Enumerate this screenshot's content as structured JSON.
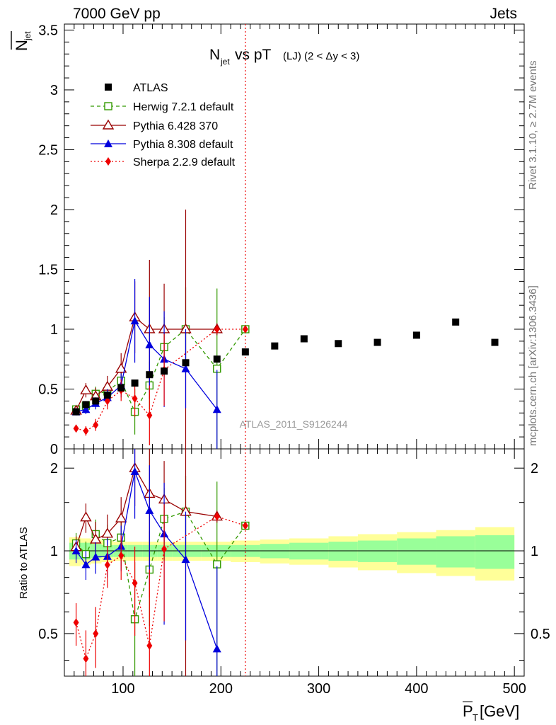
{
  "header": {
    "left": "7000 GeV pp",
    "right": "Jets"
  },
  "side": {
    "rivet": "Rivet 3.1.10, ≥ 2.7M events",
    "mcplots": "mcplots.cern.ch [arXiv:1306.3436]"
  },
  "chart_data": {
    "type": "scatter",
    "title": "N_jet vs pT (LJ) (2 < Δy < 3)",
    "analysis_tag": "ATLAS_2011_S9126244",
    "xlabel": "P_T [GeV]",
    "ylabel": "N_jet",
    "ratio_ylabel": "Ratio to ATLAS",
    "xlim": [
      40,
      510
    ],
    "ylim": [
      0,
      3.55
    ],
    "ratio_ylim": [
      0.35,
      2.35
    ],
    "x_ticks": [
      "100",
      "200",
      "300",
      "400",
      "500"
    ],
    "y_ticks": [
      "0",
      "0.5",
      "1",
      "1.5",
      "2",
      "2.5",
      "3",
      "3.5"
    ],
    "ratio_ticks": [
      "0.5",
      "1",
      "2"
    ],
    "vertical_line_x": 225,
    "legend": [
      "ATLAS",
      "Herwig 7.2.1 default",
      "Pythia 6.428 370",
      "Pythia 8.308 default",
      "Sherpa 2.2.9 default"
    ],
    "data": {
      "name": "ATLAS",
      "x": [
        52,
        62,
        72,
        84,
        98,
        112,
        127,
        142,
        164,
        196,
        225,
        255,
        285,
        320,
        360,
        400,
        440,
        480
      ],
      "y": [
        0.31,
        0.37,
        0.4,
        0.45,
        0.51,
        0.55,
        0.62,
        0.65,
        0.72,
        0.75,
        0.81,
        0.86,
        0.92,
        0.88,
        0.89,
        0.95,
        1.06,
        0.89
      ],
      "band_edges": [
        45,
        57,
        67,
        78,
        90,
        105,
        120,
        135,
        150,
        180,
        210,
        240,
        270,
        310,
        340,
        380,
        420,
        460,
        500
      ],
      "band_inner": [
        0.07,
        0.07,
        0.06,
        0.05,
        0.05,
        0.05,
        0.05,
        0.05,
        0.05,
        0.05,
        0.05,
        0.06,
        0.07,
        0.08,
        0.09,
        0.11,
        0.13,
        0.14,
        0.17
      ],
      "band_outer": [
        0.12,
        0.11,
        0.1,
        0.09,
        0.08,
        0.08,
        0.08,
        0.08,
        0.08,
        0.08,
        0.09,
        0.1,
        0.11,
        0.13,
        0.15,
        0.17,
        0.19,
        0.22,
        0.24
      ]
    },
    "series": [
      {
        "name": "Herwig 7.2.1 default",
        "color": "#339900",
        "dash": "5,4",
        "marker": "open-square",
        "x": [
          52,
          62,
          72,
          84,
          98,
          112,
          127,
          142,
          164,
          196,
          225
        ],
        "y": [
          0.33,
          0.36,
          0.46,
          0.48,
          0.57,
          0.31,
          0.53,
          0.85,
          1.0,
          0.67,
          1.0
        ],
        "err": [
          0.03,
          0.04,
          0.06,
          0.08,
          0.12,
          0.19,
          0.2,
          0.25,
          0.35,
          0.67,
          0.02
        ]
      },
      {
        "name": "Pythia 6.428 370",
        "color": "#990000",
        "dash": "",
        "marker": "open-triangle",
        "x": [
          52,
          62,
          72,
          84,
          98,
          112,
          127,
          142,
          164,
          196
        ],
        "y": [
          0.32,
          0.49,
          0.44,
          0.52,
          0.67,
          1.1,
          1.0,
          1.0,
          1.0,
          1.0
        ],
        "err": [
          0.03,
          0.06,
          0.07,
          0.09,
          0.13,
          0.3,
          0.58,
          0.38,
          1.0,
          0.05
        ]
      },
      {
        "name": "Pythia 8.308 default",
        "color": "#0000dd",
        "dash": "",
        "marker": "filled-triangle",
        "x": [
          52,
          62,
          72,
          84,
          98,
          112,
          127,
          142,
          164,
          196
        ],
        "y": [
          0.31,
          0.33,
          0.38,
          0.43,
          0.53,
          1.07,
          0.87,
          0.75,
          0.67,
          0.33
        ],
        "err": [
          0.03,
          0.04,
          0.05,
          0.07,
          0.1,
          0.35,
          0.4,
          0.4,
          0.33,
          0.33
        ]
      },
      {
        "name": "Sherpa 2.2.9 default",
        "color": "#ee0000",
        "dash": "2,3",
        "marker": "diamond",
        "x": [
          52,
          62,
          72,
          84,
          98,
          112,
          127,
          142,
          196,
          225
        ],
        "y": [
          0.17,
          0.15,
          0.2,
          0.4,
          0.49,
          0.42,
          0.28,
          0.66,
          1.0,
          1.0
        ],
        "err": [
          0.03,
          0.04,
          0.05,
          0.07,
          0.09,
          0.15,
          0.25,
          0.3,
          0.03,
          0.03
        ]
      }
    ]
  }
}
